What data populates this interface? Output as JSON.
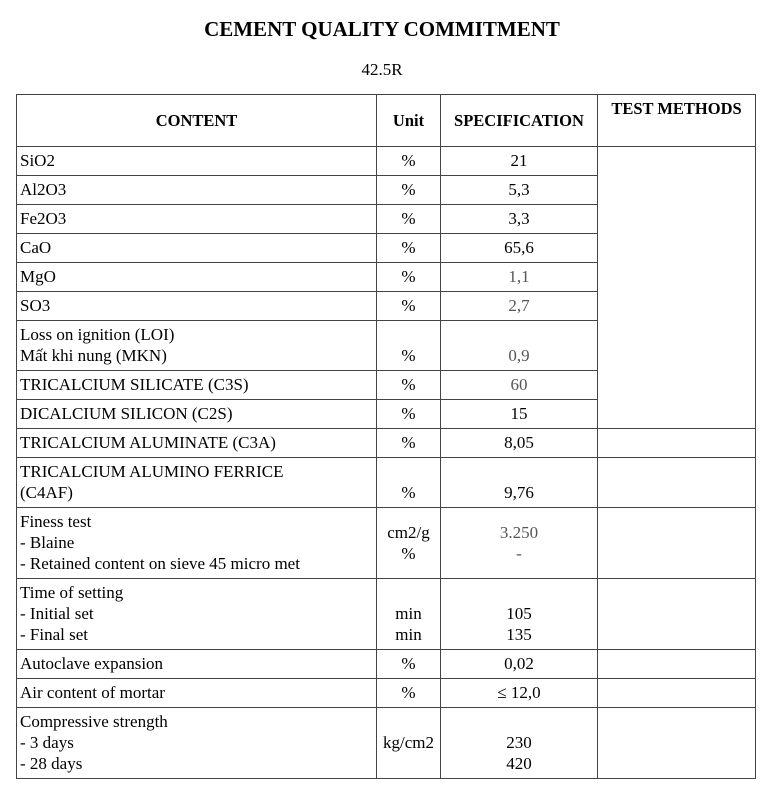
{
  "title": "CEMENT QUALITY COMMITMENT",
  "subtitle": "42.5R",
  "table": {
    "headers": [
      "CONTENT",
      "Unit",
      "SPECIFICATION",
      "TEST METHODS"
    ],
    "rows": [
      {
        "content": [
          "SiO2"
        ],
        "unit": [
          "%"
        ],
        "spec": [
          "21"
        ]
      },
      {
        "content": [
          "Al2O3"
        ],
        "unit": [
          "%"
        ],
        "spec": [
          "5,3"
        ]
      },
      {
        "content": [
          "Fe2O3"
        ],
        "unit": [
          "%"
        ],
        "spec": [
          "3,3"
        ]
      },
      {
        "content": [
          "CaO"
        ],
        "unit": [
          "%"
        ],
        "spec": [
          "65,6"
        ]
      },
      {
        "content": [
          "MgO"
        ],
        "unit": [
          "%"
        ],
        "spec": [
          "1,1"
        ],
        "grey": true
      },
      {
        "content": [
          "SO3"
        ],
        "unit": [
          "%"
        ],
        "spec": [
          "2,7"
        ],
        "grey": true
      },
      {
        "content": [
          "Loss on ignition (LOI)",
          "Mất khi nung (MKN)"
        ],
        "unit": [
          "",
          "%"
        ],
        "spec": [
          "",
          "0,9"
        ],
        "grey": true
      },
      {
        "content": [
          "TRICALCIUM SILICATE (C3S)"
        ],
        "unit": [
          "%"
        ],
        "spec": [
          "60"
        ],
        "grey": true
      },
      {
        "content": [
          "DICALCIUM SILICON (C2S)"
        ],
        "unit": [
          "%"
        ],
        "spec": [
          "15"
        ]
      },
      {
        "content": [
          "TRICALCIUM ALUMINATE (C3A)"
        ],
        "unit": [
          "%"
        ],
        "spec": [
          "8,05"
        ]
      },
      {
        "content": [
          "TRICALCIUM ALUMINO FERRICE",
          "(C4AF)"
        ],
        "unit": [
          "",
          "%"
        ],
        "spec": [
          "",
          "9,76"
        ]
      },
      {
        "content": [
          "Finess test",
          "- Blaine",
          "- Retained content on sieve 45 micro met"
        ],
        "unit": [
          "cm2/g",
          "%"
        ],
        "spec": [
          "3.250",
          "-"
        ],
        "grey": true,
        "middle": true
      },
      {
        "content": [
          "Time of setting",
          "- Initial set",
          "- Final set"
        ],
        "unit": [
          "",
          "min",
          "min"
        ],
        "spec": [
          "",
          "105",
          "135"
        ]
      },
      {
        "content": [
          "Autoclave expansion"
        ],
        "unit": [
          "%"
        ],
        "spec": [
          "0,02"
        ]
      },
      {
        "content": [
          "Air content of mortar"
        ],
        "unit": [
          "%"
        ],
        "spec": [
          "≤ 12,0"
        ]
      },
      {
        "content": [
          "Compressive strength",
          "- 3 days",
          "- 28 days"
        ],
        "unit": [
          "",
          "kg/cm2",
          ""
        ],
        "spec": [
          "",
          "230",
          "420"
        ]
      }
    ],
    "merged_methods_rows": 9
  }
}
